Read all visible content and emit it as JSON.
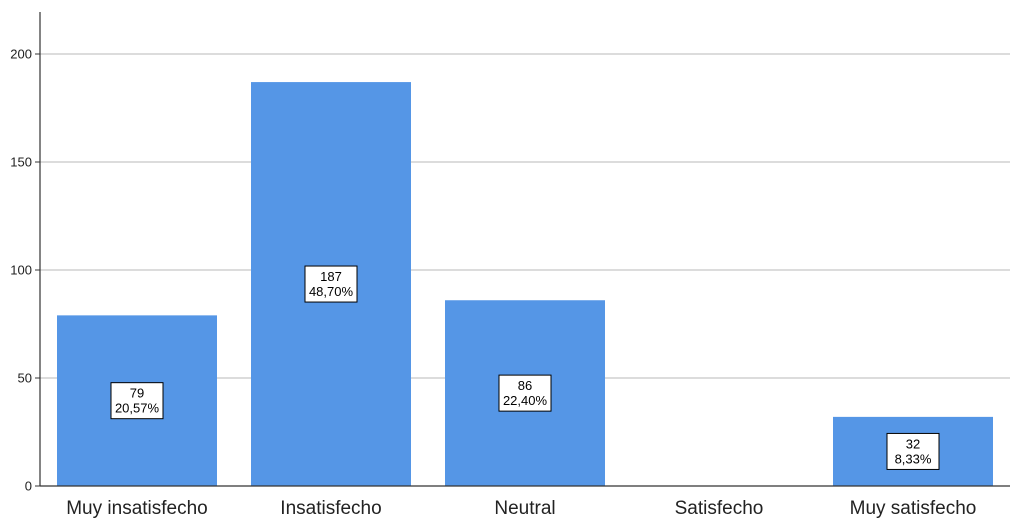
{
  "chart_data": {
    "type": "bar",
    "title": "",
    "xlabel": "",
    "ylabel": "",
    "categories": [
      "Muy insatisfecho",
      "Insatisfecho",
      "Neutral",
      "Satisfecho",
      "Muy satisfecho"
    ],
    "values": [
      79,
      187,
      86,
      0,
      32
    ],
    "percent_labels": [
      "20,57%",
      "48,70%",
      "22,40%",
      "",
      "8,33%"
    ],
    "ylim": [
      0,
      220
    ],
    "yticks": [
      0,
      50,
      100,
      150,
      200
    ],
    "grid": true,
    "legend": "none",
    "bar_color": "#5596e6",
    "grid_color": "#c8c8c8",
    "axis_color": "#333333"
  }
}
